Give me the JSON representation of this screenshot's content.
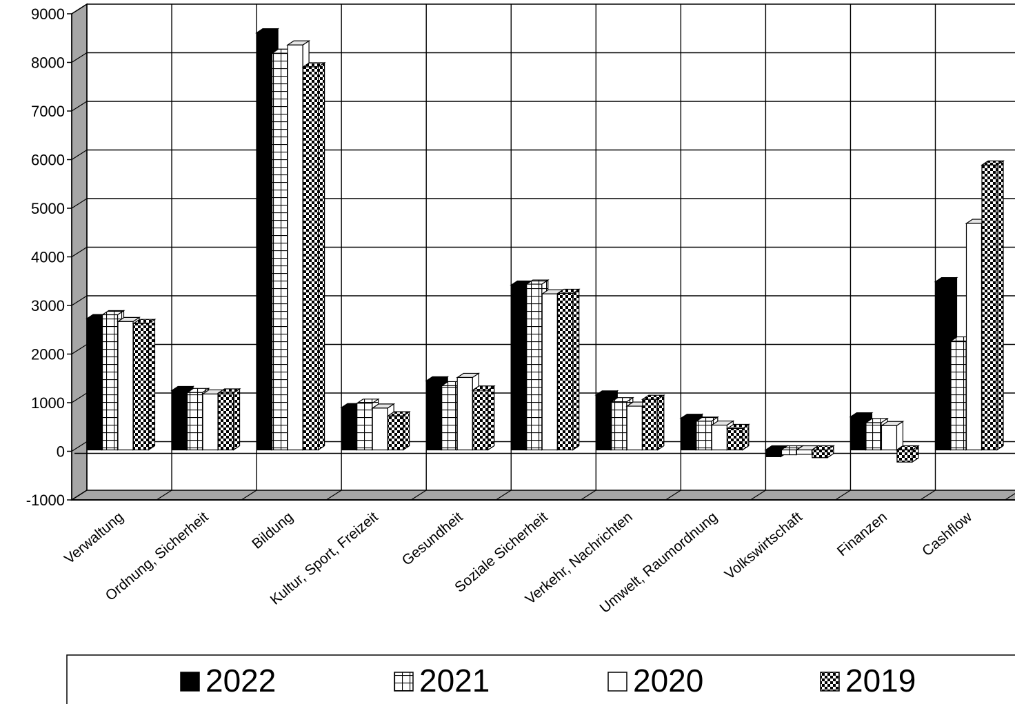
{
  "chart_data": {
    "type": "bar",
    "title": "",
    "xlabel": "",
    "ylabel": "",
    "ylim": [
      -1000,
      9000
    ],
    "yticks": [
      -1000,
      0,
      1000,
      2000,
      3000,
      4000,
      5000,
      6000,
      7000,
      8000,
      9000
    ],
    "grid": true,
    "legend_position": "bottom",
    "style": "3d-clustered-column",
    "categories": [
      "Verwaltung",
      "Ordnung, Sicherheit",
      "Bildung",
      "Kultur, Sport, Freizeit",
      "Gesundheit",
      "Soziale Sicherheit",
      "Verkehr, Nachrichten",
      "Umwelt, Raumordnung",
      "Volkswirtschaft",
      "Finanzen",
      "Cashflow"
    ],
    "series": [
      {
        "name": "2022",
        "pattern": "solid",
        "values": [
          2700,
          1220,
          8580,
          870,
          1420,
          3390,
          1130,
          650,
          -140,
          680,
          3460
        ]
      },
      {
        "name": "2021",
        "pattern": "grid",
        "values": [
          2780,
          1180,
          8160,
          960,
          1320,
          3410,
          990,
          590,
          -100,
          560,
          2240
        ]
      },
      {
        "name": "2020",
        "pattern": "white",
        "values": [
          2640,
          1150,
          8330,
          860,
          1490,
          3210,
          900,
          510,
          -90,
          500,
          4660
        ]
      },
      {
        "name": "2019",
        "pattern": "checker",
        "values": [
          2600,
          1170,
          7880,
          700,
          1230,
          3220,
          1040,
          440,
          -160,
          -250,
          5860
        ]
      }
    ],
    "colors": {
      "bar_fill": "#000000",
      "background": "#ffffff",
      "wall_shade": "#a6a6a6",
      "grid": "#000000"
    }
  }
}
